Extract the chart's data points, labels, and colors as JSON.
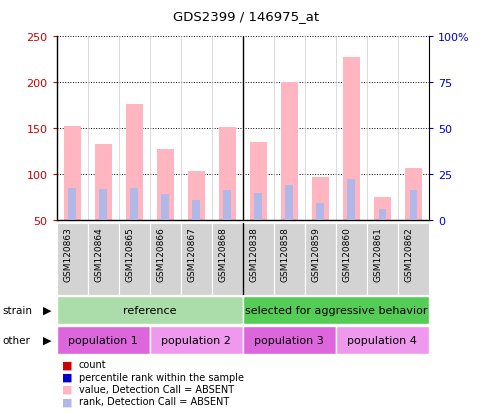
{
  "title": "GDS2399 / 146975_at",
  "samples": [
    "GSM120863",
    "GSM120864",
    "GSM120865",
    "GSM120866",
    "GSM120867",
    "GSM120868",
    "GSM120838",
    "GSM120858",
    "GSM120859",
    "GSM120860",
    "GSM120861",
    "GSM120862"
  ],
  "values_absent": [
    153,
    133,
    176,
    128,
    104,
    151,
    135,
    200,
    97,
    227,
    75,
    107
  ],
  "rank_absent": [
    85,
    84,
    85,
    79,
    72,
    83,
    80,
    89,
    69,
    95,
    62,
    83
  ],
  "left_ylim": [
    50,
    250
  ],
  "right_ylim": [
    0,
    100
  ],
  "left_yticks": [
    50,
    100,
    150,
    200,
    250
  ],
  "right_yticks": [
    0,
    25,
    50,
    75,
    100
  ],
  "right_yticklabels": [
    "0",
    "25",
    "50",
    "75",
    "100%"
  ],
  "bar_width": 0.55,
  "rank_bar_width": 0.25,
  "absent_bar_color": "#ffb6c1",
  "rank_absent_bar_color": "#b0b8e8",
  "left_tick_color": "#cc0000",
  "right_tick_color": "#0000cc",
  "strain_labels": [
    "reference",
    "selected for aggressive behavior"
  ],
  "strain_colors": [
    "#aaddaa",
    "#55cc55"
  ],
  "other_labels": [
    "population 1",
    "population 2",
    "population 3",
    "population 4"
  ],
  "other_colors": [
    "#dd66dd",
    "#ee99ee",
    "#dd66dd",
    "#ee99ee"
  ],
  "legend_items": [
    {
      "label": "count",
      "color": "#cc0000"
    },
    {
      "label": "percentile rank within the sample",
      "color": "#0000cc"
    },
    {
      "label": "value, Detection Call = ABSENT",
      "color": "#ffb6c1"
    },
    {
      "label": "rank, Detection Call = ABSENT",
      "color": "#b0b8e8"
    }
  ]
}
